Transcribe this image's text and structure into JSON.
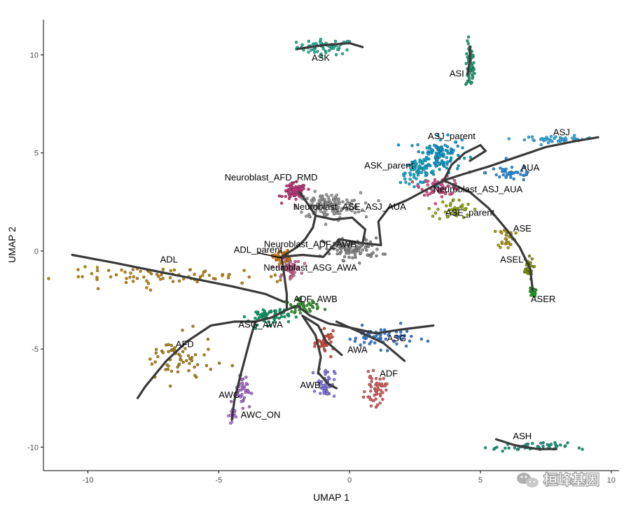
{
  "chart_data": {
    "type": "scatter",
    "title": "",
    "xlabel": "UMAP 1",
    "ylabel": "UMAP 2",
    "xlim": [
      -11.7,
      10.3
    ],
    "ylim": [
      -11.2,
      11.8
    ],
    "xticks": [
      -10,
      -5,
      0,
      5,
      10
    ],
    "yticks": [
      -10,
      -5,
      0,
      5,
      10
    ],
    "grid": false,
    "legend": "none",
    "clusters": [
      {
        "name": "ASK",
        "color": "#1abc9c",
        "label_x": -1.1,
        "label_y": 9.7,
        "center": [
          -0.9,
          10.4
        ],
        "spread": [
          1.0,
          0.35
        ],
        "n": 60
      },
      {
        "name": "ASI",
        "color": "#1aa37a",
        "label_x": 4.1,
        "label_y": 8.9,
        "center": [
          4.6,
          9.4
        ],
        "spread": [
          0.15,
          1.1
        ],
        "n": 60
      },
      {
        "name": "ASJ_parent",
        "color": "#00a9e0",
        "label_x": 3.9,
        "label_y": 5.7,
        "center": [
          3.4,
          4.9
        ],
        "spread": [
          0.8,
          0.8
        ],
        "n": 120
      },
      {
        "name": "ASJ",
        "color": "#29b6f6",
        "label_x": 8.1,
        "label_y": 5.9,
        "center": [
          8.0,
          5.7
        ],
        "spread": [
          1.2,
          0.15
        ],
        "n": 40
      },
      {
        "name": "ASK_parent",
        "color": "#00b4d8",
        "label_x": 1.5,
        "label_y": 4.2,
        "center": [
          2.6,
          4.0
        ],
        "spread": [
          0.6,
          0.5
        ],
        "n": 60
      },
      {
        "name": "AUA",
        "color": "#2196f3",
        "label_x": 6.9,
        "label_y": 4.1,
        "center": [
          6.2,
          4.0
        ],
        "spread": [
          0.9,
          0.4
        ],
        "n": 40
      },
      {
        "name": "Neuroblast_AFD_RMD",
        "color": "#d63384",
        "label_x": -3.0,
        "label_y": 3.6,
        "center": [
          -2.1,
          3.0
        ],
        "spread": [
          0.4,
          0.4
        ],
        "n": 80
      },
      {
        "name": "Neuroblast_ASJ_AUA",
        "color": "#e64a8c",
        "label_x": 4.9,
        "label_y": 3.0,
        "center": [
          3.5,
          3.3
        ],
        "spread": [
          0.7,
          0.4
        ],
        "n": 70
      },
      {
        "name": "Neuroblast_ASE_ASJ_AUA",
        "color": "#9e9e9e",
        "label_x": 0.0,
        "label_y": 2.1,
        "center": [
          -0.8,
          2.3
        ],
        "spread": [
          1.1,
          0.6
        ],
        "n": 140
      },
      {
        "name": "ASE_parent",
        "color": "#9ab000",
        "label_x": 4.6,
        "label_y": 1.8,
        "center": [
          4.0,
          2.1
        ],
        "spread": [
          0.6,
          0.5
        ],
        "n": 40
      },
      {
        "name": "ASE",
        "color": "#b5a000",
        "label_x": 6.6,
        "label_y": 1.0,
        "center": [
          6.0,
          0.7
        ],
        "spread": [
          0.3,
          0.5
        ],
        "n": 30
      },
      {
        "name": "ASEL",
        "color": "#8a9a00",
        "label_x": 6.2,
        "label_y": -0.6,
        "center": [
          6.8,
          -0.9
        ],
        "spread": [
          0.2,
          0.5
        ],
        "n": 30
      },
      {
        "name": "ASER",
        "color": "#22aa22",
        "label_x": 7.4,
        "label_y": -2.6,
        "center": [
          7.0,
          -2.1
        ],
        "spread": [
          0.1,
          0.2
        ],
        "n": 30
      },
      {
        "name": "ADL_parent",
        "color": "#e67e00",
        "label_x": -3.5,
        "label_y": -0.1,
        "center": [
          -2.6,
          -0.3
        ],
        "spread": [
          0.3,
          0.3
        ],
        "n": 40
      },
      {
        "name": "Neuroblast_ADF_AWB",
        "color": "#8e8e8e",
        "label_x": -1.5,
        "label_y": 0.2,
        "center": [
          0.1,
          0.1
        ],
        "spread": [
          1.0,
          0.5
        ],
        "n": 110
      },
      {
        "name": "Neuroblast_ASG_AWA",
        "color": "#e0679e",
        "label_x": -1.5,
        "label_y": -1.0,
        "center": [
          -2.3,
          -0.9
        ],
        "spread": [
          0.4,
          0.4
        ],
        "n": 50
      },
      {
        "name": "ADL",
        "color": "#c78a00",
        "label_x": -6.9,
        "label_y": -0.6,
        "center": [
          -6.6,
          -1.3
        ],
        "spread": [
          4.0,
          0.4
        ],
        "n": 80
      },
      {
        "name": "ADF_AWB",
        "color": "#2ca02c",
        "label_x": -1.3,
        "label_y": -2.6,
        "center": [
          -1.8,
          -2.8
        ],
        "spread": [
          0.6,
          0.3
        ],
        "n": 50
      },
      {
        "name": "ASG_AWA",
        "color": "#00a86b",
        "label_x": -3.4,
        "label_y": -3.9,
        "center": [
          -3.1,
          -3.3
        ],
        "spread": [
          0.7,
          0.4
        ],
        "n": 60
      },
      {
        "name": "ASG",
        "color": "#2f80ed",
        "label_x": 1.8,
        "label_y": -4.6,
        "center": [
          1.2,
          -4.4
        ],
        "spread": [
          1.2,
          0.5
        ],
        "n": 60
      },
      {
        "name": "AWA",
        "color": "#e74c3c",
        "label_x": 0.3,
        "label_y": -5.2,
        "center": [
          -0.9,
          -4.7
        ],
        "spread": [
          0.3,
          0.5
        ],
        "n": 40
      },
      {
        "name": "AFD",
        "color": "#b8860b",
        "label_x": -6.3,
        "label_y": -4.9,
        "center": [
          -6.6,
          -5.6
        ],
        "spread": [
          1.3,
          1.1
        ],
        "n": 60
      },
      {
        "name": "ADF",
        "color": "#e85d5d",
        "label_x": 1.5,
        "label_y": -6.4,
        "center": [
          1.0,
          -7.1
        ],
        "spread": [
          0.35,
          0.7
        ],
        "n": 50
      },
      {
        "name": "AWB",
        "color": "#8b7cf6",
        "label_x": -1.5,
        "label_y": -7.0,
        "center": [
          -0.9,
          -6.7
        ],
        "spread": [
          0.3,
          0.7
        ],
        "n": 50
      },
      {
        "name": "AWC",
        "color": "#b06ce0",
        "label_x": -4.6,
        "label_y": -7.5,
        "center": [
          -4.1,
          -7.0
        ],
        "spread": [
          0.3,
          0.8
        ],
        "n": 40
      },
      {
        "name": "AWC_ON",
        "color": "#c77dff",
        "label_x": -3.4,
        "label_y": -8.5,
        "center": [
          -4.5,
          -8.4
        ],
        "spread": [
          0.1,
          0.4
        ],
        "n": 20
      },
      {
        "name": "ASH",
        "color": "#16a085",
        "label_x": 6.6,
        "label_y": -9.6,
        "center": [
          6.9,
          -10.0
        ],
        "spread": [
          1.3,
          0.2
        ],
        "n": 50
      }
    ],
    "trajectories": [
      [
        [
          -2.0,
          10.3
        ],
        [
          -1.0,
          10.5
        ],
        [
          0.0,
          10.6
        ],
        [
          0.5,
          10.4
        ]
      ],
      [
        [
          4.6,
          10.4
        ],
        [
          4.6,
          9.7
        ],
        [
          4.5,
          9.0
        ]
      ],
      [
        [
          -10.6,
          -0.2
        ],
        [
          -9.0,
          -0.6
        ],
        [
          -7.5,
          -1.0
        ],
        [
          -6.0,
          -1.4
        ],
        [
          -4.5,
          -1.8
        ],
        [
          -3.2,
          -2.2
        ],
        [
          -2.5,
          -2.6
        ]
      ],
      [
        [
          -2.6,
          -0.3
        ],
        [
          -2.5,
          -1.2
        ],
        [
          -2.4,
          -2.2
        ],
        [
          -2.4,
          -3.0
        ]
      ],
      [
        [
          -2.4,
          -3.0
        ],
        [
          -2.0,
          -2.8
        ],
        [
          -1.5,
          -3.3
        ],
        [
          -0.8,
          -3.7
        ],
        [
          0.0,
          -3.9
        ],
        [
          1.0,
          -4.2
        ],
        [
          2.0,
          -4.0
        ],
        [
          3.2,
          -3.8
        ]
      ],
      [
        [
          -2.4,
          -3.0
        ],
        [
          -3.0,
          -3.4
        ],
        [
          -3.6,
          -3.6
        ],
        [
          -4.4,
          -3.6
        ],
        [
          -5.3,
          -3.8
        ],
        [
          -6.2,
          -4.6
        ],
        [
          -7.0,
          -5.6
        ],
        [
          -7.8,
          -6.9
        ],
        [
          -8.1,
          -7.5
        ]
      ],
      [
        [
          -3.6,
          -3.6
        ],
        [
          -3.8,
          -4.5
        ],
        [
          -4.0,
          -5.5
        ],
        [
          -4.2,
          -6.5
        ],
        [
          -4.4,
          -7.6
        ],
        [
          -4.5,
          -8.6
        ]
      ],
      [
        [
          -1.8,
          -3.3
        ],
        [
          -1.2,
          -3.8
        ],
        [
          -0.9,
          -4.6
        ],
        [
          -0.3,
          -5.3
        ]
      ],
      [
        [
          -1.8,
          -3.3
        ],
        [
          -1.3,
          -4.3
        ],
        [
          -1.1,
          -5.4
        ],
        [
          -1.2,
          -6.2
        ],
        [
          -0.8,
          -6.8
        ],
        [
          -0.5,
          -7.0
        ]
      ],
      [
        [
          -0.5,
          -3.6
        ],
        [
          0.5,
          -4.2
        ],
        [
          1.3,
          -4.7
        ],
        [
          2.1,
          -5.6
        ]
      ],
      [
        [
          -2.6,
          -0.3
        ],
        [
          -1.8,
          -0.2
        ],
        [
          -1.0,
          -0.3
        ],
        [
          -0.4,
          0.6
        ],
        [
          0.5,
          0.4
        ],
        [
          1.2,
          0.3
        ],
        [
          1.1,
          1.5
        ],
        [
          1.5,
          2.2
        ],
        [
          2.2,
          2.6
        ],
        [
          2.9,
          3.1
        ],
        [
          3.6,
          3.6
        ]
      ],
      [
        [
          -1.9,
          3.0
        ],
        [
          -1.6,
          2.4
        ],
        [
          -1.3,
          1.8
        ],
        [
          -1.4,
          1.2
        ],
        [
          -1.7,
          0.6
        ],
        [
          -2.0,
          0.2
        ],
        [
          -2.6,
          -0.3
        ]
      ],
      [
        [
          -1.3,
          1.8
        ],
        [
          -0.6,
          1.6
        ],
        [
          0.1,
          1.7
        ],
        [
          0.6,
          1.1
        ],
        [
          0.5,
          0.4
        ]
      ],
      [
        [
          3.6,
          3.6
        ],
        [
          4.3,
          3.9
        ],
        [
          5.3,
          4.3
        ],
        [
          6.4,
          4.8
        ],
        [
          7.5,
          5.3
        ],
        [
          8.6,
          5.6
        ],
        [
          9.5,
          5.8
        ]
      ],
      [
        [
          3.6,
          3.6
        ],
        [
          3.9,
          4.4
        ],
        [
          4.4,
          5.0
        ],
        [
          5.0,
          5.4
        ],
        [
          5.2,
          5.1
        ],
        [
          4.6,
          4.6
        ]
      ],
      [
        [
          3.6,
          3.6
        ],
        [
          4.6,
          3.0
        ],
        [
          5.3,
          2.2
        ],
        [
          6.0,
          1.1
        ],
        [
          6.5,
          0.2
        ],
        [
          6.9,
          -0.9
        ],
        [
          7.0,
          -2.0
        ]
      ],
      [
        [
          5.6,
          -9.6
        ],
        [
          6.3,
          -9.9
        ],
        [
          7.2,
          -10.1
        ],
        [
          7.9,
          -10.1
        ]
      ]
    ],
    "annotations": [
      {
        "text": "ADL_parent",
        "x": -3.5,
        "y": -0.1
      }
    ]
  },
  "watermark": {
    "text": "桓峰基因",
    "icon": "wechat-icon"
  }
}
